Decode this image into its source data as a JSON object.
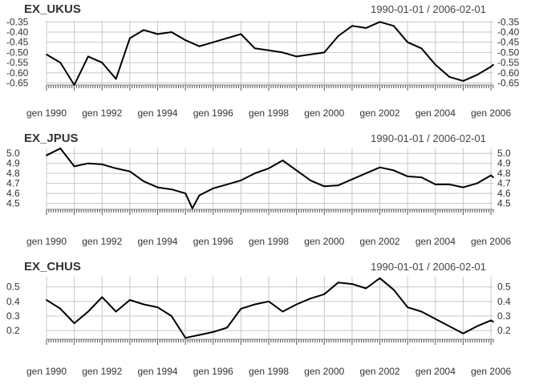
{
  "chart_data": [
    {
      "type": "line",
      "title": "EX_UKUS",
      "date_range": "1990-01-01 / 2006-02-01",
      "x": [
        "1990-01",
        "1990-07",
        "1991-01",
        "1991-07",
        "1992-01",
        "1992-07",
        "1993-01",
        "1993-07",
        "1994-01",
        "1994-07",
        "1995-01",
        "1995-07",
        "1996-01",
        "1996-07",
        "1997-01",
        "1997-07",
        "1998-01",
        "1998-07",
        "1999-01",
        "1999-07",
        "2000-01",
        "2000-07",
        "2001-01",
        "2001-07",
        "2002-01",
        "2002-07",
        "2003-01",
        "2003-07",
        "2004-01",
        "2004-07",
        "2005-01",
        "2005-07",
        "2006-01",
        "2006-02"
      ],
      "values": [
        -0.51,
        -0.55,
        -0.66,
        -0.52,
        -0.55,
        -0.63,
        -0.43,
        -0.39,
        -0.41,
        -0.4,
        -0.44,
        -0.47,
        -0.45,
        -0.43,
        -0.41,
        -0.48,
        -0.49,
        -0.5,
        -0.52,
        -0.51,
        -0.5,
        -0.42,
        -0.37,
        -0.38,
        -0.35,
        -0.37,
        -0.45,
        -0.48,
        -0.56,
        -0.62,
        -0.64,
        -0.61,
        -0.57,
        -0.56
      ],
      "yticks": [
        "-0.35",
        "-0.40",
        "-0.45",
        "-0.50",
        "-0.55",
        "-0.60",
        "-0.65"
      ],
      "ylim": [
        -0.66,
        -0.345
      ],
      "xticks": [
        "gen 1990",
        "gen 1992",
        "gen 1994",
        "gen 1996",
        "gen 1998",
        "gen 2000",
        "gen 2002",
        "gen 2004",
        "gen 2006"
      ],
      "grid": true,
      "color": "#000000"
    },
    {
      "type": "line",
      "title": "EX_JPUS",
      "date_range": "1990-01-01 / 2006-02-01",
      "x": [
        "1990-01",
        "1990-07",
        "1991-01",
        "1991-07",
        "1992-01",
        "1992-07",
        "1993-01",
        "1993-07",
        "1994-01",
        "1994-07",
        "1995-01",
        "1995-04",
        "1995-07",
        "1996-01",
        "1996-07",
        "1997-01",
        "1997-07",
        "1998-01",
        "1998-07",
        "1999-01",
        "1999-07",
        "2000-01",
        "2000-07",
        "2001-01",
        "2001-07",
        "2002-01",
        "2002-07",
        "2003-01",
        "2003-07",
        "2004-01",
        "2004-07",
        "2005-01",
        "2005-07",
        "2006-01",
        "2006-02"
      ],
      "values": [
        4.98,
        5.05,
        4.87,
        4.9,
        4.89,
        4.85,
        4.82,
        4.72,
        4.66,
        4.64,
        4.6,
        4.45,
        4.58,
        4.65,
        4.69,
        4.73,
        4.8,
        4.85,
        4.93,
        4.83,
        4.73,
        4.67,
        4.68,
        4.74,
        4.8,
        4.86,
        4.83,
        4.77,
        4.76,
        4.69,
        4.69,
        4.66,
        4.7,
        4.78,
        4.76
      ],
      "yticks": [
        "5.0",
        "4.9",
        "4.8",
        "4.7",
        "4.6",
        "4.5"
      ],
      "ylim": [
        4.44,
        5.05
      ],
      "xticks": [
        "gen 1990",
        "gen 1992",
        "gen 1994",
        "gen 1996",
        "gen 1998",
        "gen 2000",
        "gen 2002",
        "gen 2004",
        "gen 2006"
      ],
      "grid": true,
      "color": "#000000"
    },
    {
      "type": "line",
      "title": "EX_CHUS",
      "date_range": "1990-01-01 / 2006-02-01",
      "x": [
        "1990-01",
        "1990-07",
        "1991-01",
        "1991-07",
        "1992-01",
        "1992-07",
        "1993-01",
        "1993-07",
        "1994-01",
        "1994-07",
        "1995-01",
        "1995-07",
        "1996-01",
        "1996-07",
        "1997-01",
        "1997-07",
        "1998-01",
        "1998-07",
        "1999-01",
        "1999-07",
        "2000-01",
        "2000-07",
        "2001-01",
        "2001-07",
        "2002-01",
        "2002-07",
        "2003-01",
        "2003-07",
        "2004-01",
        "2004-07",
        "2005-01",
        "2005-07",
        "2006-01",
        "2006-02"
      ],
      "values": [
        0.41,
        0.35,
        0.25,
        0.33,
        0.43,
        0.33,
        0.41,
        0.38,
        0.36,
        0.3,
        0.15,
        0.17,
        0.19,
        0.22,
        0.35,
        0.38,
        0.4,
        0.33,
        0.38,
        0.42,
        0.45,
        0.53,
        0.52,
        0.49,
        0.56,
        0.48,
        0.36,
        0.33,
        0.28,
        0.23,
        0.18,
        0.23,
        0.27,
        0.26
      ],
      "yticks": [
        "0.5",
        "0.4",
        "0.3",
        "0.2"
      ],
      "ylim": [
        0.14,
        0.57
      ],
      "xticks": [
        "gen 1990",
        "gen 1992",
        "gen 1994",
        "gen 1996",
        "gen 1998",
        "gen 2000",
        "gen 2002",
        "gen 2004",
        "gen 2006"
      ],
      "grid": true,
      "color": "#000000"
    }
  ]
}
